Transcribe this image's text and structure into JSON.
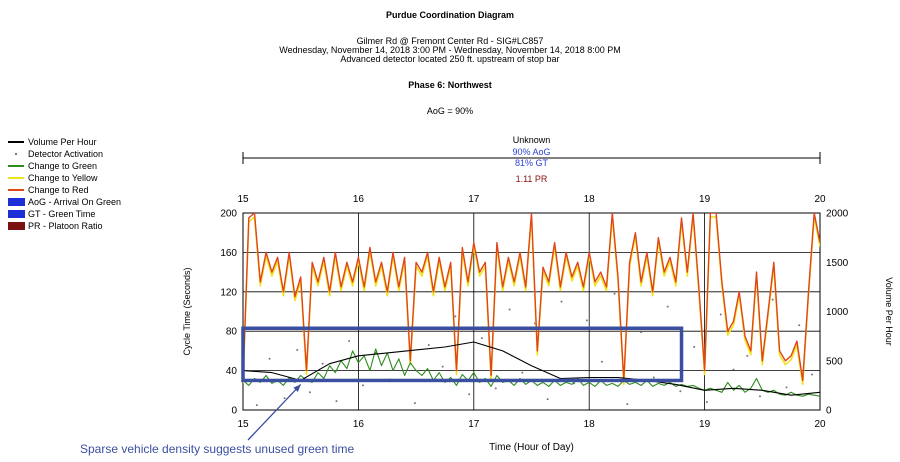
{
  "titles": {
    "main": "Purdue Coordination Diagram",
    "location": "Gilmer Rd @ Fremont Center Rd - SIG#LC857",
    "daterange": "Wednesday, November 14, 2018 3:00 PM - Wednesday, November 14, 2018 8:00 PM",
    "detector": "Advanced detector located 250 ft. upstream of stop bar",
    "phase": "Phase 6: Northwest",
    "aog": "AoG = 90%"
  },
  "legend": [
    {
      "label": "Volume Per Hour",
      "color": "#000000",
      "kind": "line"
    },
    {
      "label": "Detector Activation",
      "color": "#777777",
      "kind": "dot"
    },
    {
      "label": "Change to Green",
      "color": "#2e8b1e",
      "kind": "line"
    },
    {
      "label": "Change to Yellow",
      "color": "#f2e21a",
      "kind": "line"
    },
    {
      "label": "Change to Red",
      "color": "#e0451b",
      "kind": "line"
    },
    {
      "label": "AoG - Arrival On Green",
      "color": "#1c2fd6",
      "kind": "box"
    },
    {
      "label": "GT - Green Time",
      "color": "#1c2fd6",
      "kind": "box"
    },
    {
      "label": "PR - Platoon Ratio",
      "color": "#7a1010",
      "kind": "box"
    }
  ],
  "plan": {
    "name": "Unknown",
    "aog": "90% AoG",
    "gt": "81% GT",
    "pr": "1.11 PR",
    "stat_color": "#2b3fd4",
    "pr_color": "#8b1010"
  },
  "annotation": "Sparse vehicle density suggests unused green time",
  "chart_data": {
    "type": "line",
    "title": "Purdue Coordination Diagram",
    "xlabel": "Time (Hour of Day)",
    "ylabel": "Cycle Time (Seconds)",
    "y2label": "Volume Per Hour",
    "xlim": [
      15,
      20
    ],
    "ylim": [
      0,
      200
    ],
    "y2lim": [
      0,
      2000
    ],
    "xticks": [
      "15",
      "16",
      "17",
      "18",
      "19",
      "20"
    ],
    "yticks": [
      "0",
      "40",
      "80",
      "120",
      "160",
      "200"
    ],
    "y2ticks": [
      "0",
      "500",
      "1000",
      "1500",
      "2000"
    ],
    "grid": true,
    "legend_position": "left",
    "colors": {
      "red": "#e0451b",
      "yellow": "#f2e21a",
      "green": "#2e8b1e",
      "volume": "#000000",
      "detector": "#777777",
      "highlight": "#3b4fa0"
    },
    "series": [
      {
        "name": "Change to Red",
        "x": [
          15.0,
          15.05,
          15.1,
          15.15,
          15.2,
          15.25,
          15.3,
          15.35,
          15.4,
          15.45,
          15.5,
          15.55,
          15.6,
          15.65,
          15.7,
          15.75,
          15.8,
          15.85,
          15.9,
          15.95,
          16.0,
          16.05,
          16.1,
          16.15,
          16.2,
          16.25,
          16.3,
          16.35,
          16.4,
          16.45,
          16.5,
          16.55,
          16.6,
          16.65,
          16.7,
          16.75,
          16.8,
          16.85,
          16.9,
          16.95,
          17.0,
          17.05,
          17.1,
          17.15,
          17.2,
          17.25,
          17.3,
          17.35,
          17.4,
          17.45,
          17.5,
          17.55,
          17.6,
          17.65,
          17.7,
          17.75,
          17.8,
          17.85,
          17.9,
          17.95,
          18.0,
          18.05,
          18.1,
          18.15,
          18.2,
          18.25,
          18.3,
          18.35,
          18.4,
          18.45,
          18.5,
          18.55,
          18.6,
          18.65,
          18.7,
          18.75,
          18.8,
          18.85,
          18.9,
          18.95,
          19.0,
          19.05,
          19.1,
          19.15,
          19.2,
          19.25,
          19.3,
          19.35,
          19.4,
          19.45,
          19.5,
          19.55,
          19.6,
          19.65,
          19.7,
          19.75,
          19.8,
          19.85,
          19.9,
          19.95,
          20.0
        ],
        "values": [
          30,
          195,
          200,
          130,
          160,
          140,
          155,
          120,
          160,
          115,
          135,
          40,
          150,
          130,
          155,
          120,
          160,
          125,
          150,
          130,
          155,
          125,
          165,
          130,
          150,
          120,
          160,
          125,
          155,
          50,
          150,
          140,
          160,
          120,
          155,
          125,
          150,
          40,
          165,
          130,
          170,
          140,
          150,
          35,
          170,
          125,
          155,
          130,
          160,
          125,
          200,
          60,
          145,
          130,
          170,
          125,
          160,
          135,
          150,
          125,
          160,
          130,
          140,
          125,
          200,
          135,
          30,
          150,
          180,
          130,
          160,
          120,
          175,
          140,
          155,
          130,
          195,
          140,
          200,
          125,
          40,
          200,
          200,
          130,
          80,
          90,
          120,
          75,
          60,
          140,
          50,
          100,
          150,
          60,
          50,
          55,
          70,
          30,
          120,
          200,
          170
        ]
      },
      {
        "name": "Change to Yellow",
        "x": [
          15.0,
          15.05,
          15.1,
          15.15,
          15.2,
          15.25,
          15.3,
          15.35,
          15.4,
          15.45,
          15.5,
          15.55,
          15.6,
          15.65,
          15.7,
          15.75,
          15.8,
          15.85,
          15.9,
          15.95,
          16.0,
          16.05,
          16.1,
          16.15,
          16.2,
          16.25,
          16.3,
          16.35,
          16.4,
          16.45,
          16.5,
          16.55,
          16.6,
          16.65,
          16.7,
          16.75,
          16.8,
          16.85,
          16.9,
          16.95,
          17.0,
          17.05,
          17.1,
          17.15,
          17.2,
          17.25,
          17.3,
          17.35,
          17.4,
          17.45,
          17.5,
          17.55,
          17.6,
          17.65,
          17.7,
          17.75,
          17.8,
          17.85,
          17.9,
          17.95,
          18.0,
          18.05,
          18.1,
          18.15,
          18.2,
          18.25,
          18.3,
          18.35,
          18.4,
          18.45,
          18.5,
          18.55,
          18.6,
          18.65,
          18.7,
          18.75,
          18.8,
          18.85,
          18.9,
          18.95,
          19.0,
          19.05,
          19.1,
          19.15,
          19.2,
          19.25,
          19.3,
          19.35,
          19.4,
          19.45,
          19.5,
          19.55,
          19.6,
          19.65,
          19.7,
          19.75,
          19.8,
          19.85,
          19.9,
          19.95,
          20.0
        ],
        "values": [
          27,
          191,
          196,
          126,
          156,
          136,
          151,
          116,
          156,
          111,
          131,
          36,
          146,
          126,
          151,
          116,
          156,
          121,
          146,
          126,
          151,
          121,
          161,
          126,
          146,
          116,
          156,
          121,
          151,
          46,
          146,
          136,
          156,
          116,
          151,
          121,
          146,
          36,
          161,
          126,
          166,
          136,
          146,
          31,
          166,
          121,
          151,
          126,
          156,
          121,
          196,
          56,
          141,
          126,
          166,
          121,
          156,
          131,
          146,
          121,
          156,
          126,
          136,
          121,
          196,
          131,
          26,
          146,
          176,
          126,
          156,
          116,
          171,
          136,
          151,
          126,
          191,
          136,
          196,
          121,
          36,
          196,
          196,
          126,
          76,
          86,
          116,
          71,
          56,
          136,
          46,
          96,
          146,
          56,
          46,
          51,
          66,
          26,
          116,
          196,
          166
        ]
      },
      {
        "name": "Change to Green",
        "x": [
          15.0,
          15.05,
          15.1,
          15.15,
          15.2,
          15.25,
          15.3,
          15.35,
          15.4,
          15.45,
          15.5,
          15.55,
          15.6,
          15.65,
          15.7,
          15.75,
          15.8,
          15.85,
          15.9,
          15.95,
          16.0,
          16.05,
          16.1,
          16.15,
          16.2,
          16.25,
          16.3,
          16.35,
          16.4,
          16.45,
          16.5,
          16.55,
          16.6,
          16.65,
          16.7,
          16.75,
          16.8,
          16.85,
          16.9,
          16.95,
          17.0,
          17.05,
          17.1,
          17.15,
          17.2,
          17.25,
          17.3,
          17.35,
          17.4,
          17.45,
          17.5,
          17.55,
          17.6,
          17.65,
          17.7,
          17.75,
          17.8,
          17.85,
          17.9,
          17.95,
          18.0,
          18.05,
          18.1,
          18.15,
          18.2,
          18.25,
          18.3,
          18.35,
          18.4,
          18.45,
          18.5,
          18.55,
          18.6,
          18.65,
          18.7,
          18.75,
          18.8,
          18.85,
          18.9,
          18.95,
          19.0,
          19.05,
          19.1,
          19.15,
          19.2,
          19.25,
          19.3,
          19.35,
          19.4,
          19.45,
          19.5,
          19.55,
          19.6,
          19.65,
          19.7,
          19.75,
          19.8,
          19.85,
          19.9,
          19.95,
          20.0
        ],
        "values": [
          30,
          25,
          32,
          28,
          35,
          27,
          30,
          25,
          33,
          28,
          35,
          30,
          28,
          38,
          32,
          45,
          38,
          50,
          42,
          60,
          48,
          55,
          40,
          62,
          45,
          58,
          40,
          52,
          35,
          48,
          40,
          35,
          42,
          30,
          38,
          28,
          33,
          25,
          36,
          30,
          38,
          28,
          32,
          24,
          35,
          28,
          30,
          25,
          32,
          26,
          30,
          25,
          28,
          24,
          30,
          25,
          28,
          26,
          32,
          25,
          28,
          24,
          30,
          25,
          27,
          24,
          30,
          26,
          28,
          25,
          30,
          24,
          27,
          25,
          28,
          24,
          26,
          24,
          25,
          22,
          20,
          22,
          20,
          18,
          28,
          20,
          25,
          18,
          22,
          32,
          20,
          18,
          20,
          16,
          15,
          18,
          15,
          14,
          16,
          15,
          14
        ]
      },
      {
        "name": "Volume Per Hour",
        "x": [
          15.0,
          15.25,
          15.5,
          15.75,
          16.0,
          16.25,
          16.5,
          16.75,
          17.0,
          17.25,
          17.5,
          17.75,
          18.0,
          18.25,
          18.5,
          18.75,
          19.0,
          19.25,
          19.5,
          19.75,
          20.0
        ],
        "values": [
          400,
          380,
          300,
          470,
          550,
          580,
          610,
          640,
          690,
          600,
          450,
          320,
          330,
          330,
          300,
          260,
          200,
          220,
          200,
          150,
          180
        ]
      },
      {
        "name": "Detector Activation",
        "x": [
          15.12,
          15.36,
          15.58,
          15.81,
          16.04,
          16.27,
          16.49,
          16.73,
          16.96,
          17.19,
          17.42,
          17.64,
          17.87,
          18.11,
          18.33,
          18.56,
          18.79,
          19.02,
          19.25,
          19.48,
          19.71,
          19.93,
          15.23,
          15.47,
          15.69,
          15.92,
          16.15,
          16.38,
          16.61,
          16.84,
          17.07,
          17.31,
          17.53,
          17.76,
          17.98,
          18.22,
          18.45,
          18.68,
          18.91,
          19.14,
          19.37,
          19.59,
          19.82
        ],
        "values": [
          5,
          12,
          18,
          9,
          25,
          31,
          7,
          44,
          16,
          22,
          38,
          11,
          27,
          49,
          6,
          33,
          19,
          8,
          41,
          14,
          23,
          36,
          52,
          61,
          47,
          70,
          58,
          84,
          66,
          95,
          73,
          102,
          88,
          110,
          91,
          118,
          79,
          105,
          64,
          97,
          55,
          112,
          86
        ]
      }
    ],
    "highlight_box": {
      "x": [
        15.0,
        18.8
      ],
      "y": [
        30,
        83
      ]
    }
  }
}
